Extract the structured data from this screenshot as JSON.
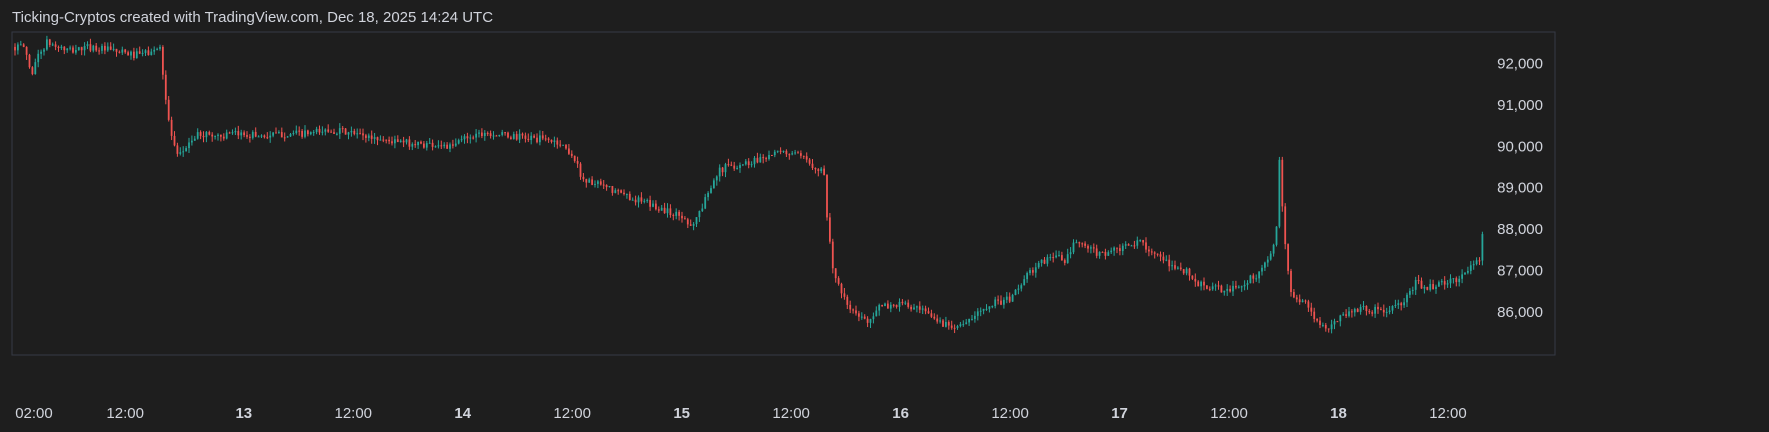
{
  "header": {
    "title": "Ticking-Cryptos created with TradingView.com, Dec 18, 2025 14:24 UTC"
  },
  "colors": {
    "background": "#1e1e1e",
    "up": "#26a69a",
    "down": "#ef5350",
    "text": "#d1d4dc",
    "frame": "#363a45"
  },
  "chart_data": {
    "type": "candlestick",
    "title": "Ticking-Cryptos created with TradingView.com, Dec 18, 2025 14:24 UTC",
    "x_tick_labels": [
      "02:00",
      "12:00",
      "13",
      "12:00",
      "14",
      "12:00",
      "15",
      "12:00",
      "16",
      "12:00",
      "17",
      "12:00",
      "18",
      "12:00"
    ],
    "x_tick_days": [
      0.0417,
      0.4583,
      1.0,
      1.5,
      2.0,
      2.5,
      3.0,
      3.5,
      4.0,
      4.5,
      5.0,
      5.5,
      6.0,
      6.5
    ],
    "x_start_day": -0.045,
    "x_end_day": 6.66,
    "y_tick_labels": [
      "92,000",
      "91,000",
      "90,000",
      "89,000",
      "88,000",
      "87,000",
      "86,000"
    ],
    "y_tick_values": [
      92000,
      91000,
      90000,
      89000,
      88000,
      87000,
      86000
    ],
    "y_range": [
      84960,
      92760
    ],
    "grid": false,
    "price_path": [
      [
        0.0,
        92400
      ],
      [
        0.03,
        91700
      ],
      [
        0.05,
        92100
      ],
      [
        0.1,
        92500
      ],
      [
        0.2,
        92300
      ],
      [
        0.3,
        92400
      ],
      [
        0.4,
        92300
      ],
      [
        0.5,
        92200
      ],
      [
        0.6,
        92300
      ],
      [
        0.62,
        92500
      ],
      [
        0.63,
        91800
      ],
      [
        0.65,
        90800
      ],
      [
        0.68,
        90000
      ],
      [
        0.7,
        89700
      ],
      [
        0.75,
        90100
      ],
      [
        0.8,
        90300
      ],
      [
        0.9,
        90250
      ],
      [
        1.0,
        90300
      ],
      [
        1.1,
        90250
      ],
      [
        1.2,
        90300
      ],
      [
        1.3,
        90300
      ],
      [
        1.4,
        90400
      ],
      [
        1.5,
        90300
      ],
      [
        1.6,
        90200
      ],
      [
        1.7,
        90100
      ],
      [
        1.8,
        90050
      ],
      [
        1.9,
        90050
      ],
      [
        1.95,
        89950
      ],
      [
        2.0,
        90200
      ],
      [
        2.1,
        90350
      ],
      [
        2.2,
        90250
      ],
      [
        2.3,
        90200
      ],
      [
        2.4,
        90150
      ],
      [
        2.45,
        90050
      ],
      [
        2.5,
        89800
      ],
      [
        2.55,
        89200
      ],
      [
        2.6,
        89100
      ],
      [
        2.7,
        88900
      ],
      [
        2.8,
        88700
      ],
      [
        2.9,
        88500
      ],
      [
        3.0,
        88300
      ],
      [
        3.05,
        88100
      ],
      [
        3.1,
        88600
      ],
      [
        3.15,
        89300
      ],
      [
        3.2,
        89500
      ],
      [
        3.3,
        89600
      ],
      [
        3.4,
        89800
      ],
      [
        3.5,
        89850
      ],
      [
        3.55,
        89700
      ],
      [
        3.6,
        89550
      ],
      [
        3.65,
        89400
      ],
      [
        3.66,
        88500
      ],
      [
        3.68,
        87500
      ],
      [
        3.7,
        86800
      ],
      [
        3.75,
        86200
      ],
      [
        3.8,
        85900
      ],
      [
        3.85,
        85800
      ],
      [
        3.9,
        86100
      ],
      [
        4.0,
        86200
      ],
      [
        4.1,
        86000
      ],
      [
        4.2,
        85700
      ],
      [
        4.3,
        85700
      ],
      [
        4.4,
        86200
      ],
      [
        4.5,
        86300
      ],
      [
        4.55,
        86700
      ],
      [
        4.6,
        87000
      ],
      [
        4.7,
        87400
      ],
      [
        4.75,
        87200
      ],
      [
        4.8,
        87700
      ],
      [
        4.9,
        87400
      ],
      [
        5.0,
        87500
      ],
      [
        5.1,
        87700
      ],
      [
        5.2,
        87200
      ],
      [
        5.3,
        87000
      ],
      [
        5.35,
        86700
      ],
      [
        5.4,
        86600
      ],
      [
        5.5,
        86500
      ],
      [
        5.6,
        86800
      ],
      [
        5.65,
        87000
      ],
      [
        5.7,
        87500
      ],
      [
        5.72,
        88200
      ],
      [
        5.73,
        89600
      ],
      [
        5.74,
        88800
      ],
      [
        5.76,
        87300
      ],
      [
        5.78,
        86500
      ],
      [
        5.85,
        86200
      ],
      [
        5.9,
        85800
      ],
      [
        5.95,
        85500
      ],
      [
        6.0,
        85900
      ],
      [
        6.1,
        86100
      ],
      [
        6.2,
        86000
      ],
      [
        6.3,
        86200
      ],
      [
        6.35,
        86700
      ],
      [
        6.4,
        86600
      ],
      [
        6.5,
        86700
      ],
      [
        6.58,
        86900
      ],
      [
        6.63,
        87300
      ],
      [
        6.65,
        87100
      ],
      [
        6.66,
        88200
      ]
    ]
  }
}
